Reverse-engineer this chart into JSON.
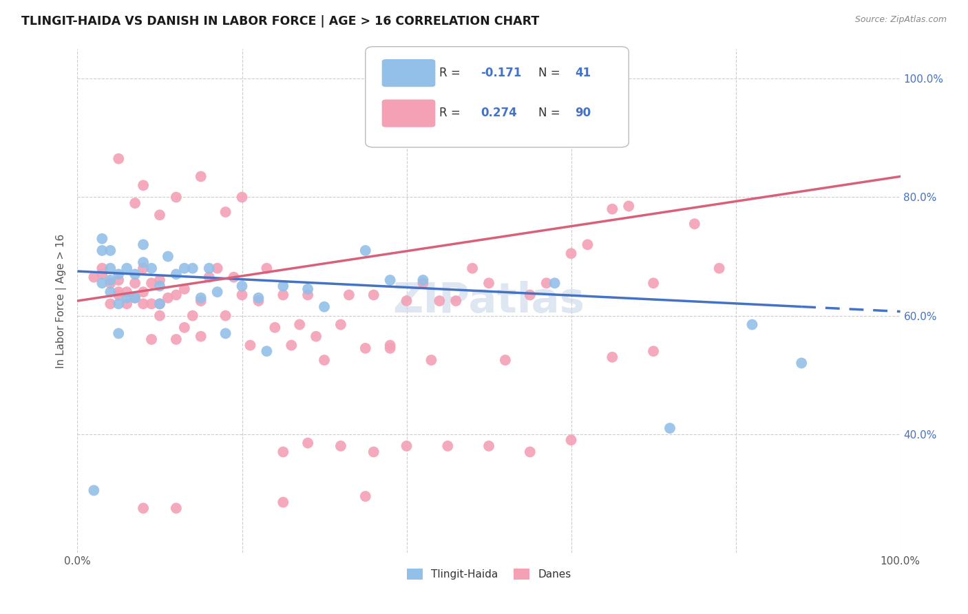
{
  "title": "TLINGIT-HAIDA VS DANISH IN LABOR FORCE | AGE > 16 CORRELATION CHART",
  "source": "Source: ZipAtlas.com",
  "ylabel": "In Labor Force | Age > 16",
  "xlim": [
    0,
    1
  ],
  "ylim": [
    0.2,
    1.05
  ],
  "x_tick_positions": [
    0.0,
    0.2,
    0.4,
    0.6,
    0.8,
    1.0
  ],
  "x_tick_labels": [
    "0.0%",
    "",
    "",
    "",
    "",
    "100.0%"
  ],
  "y_tick_positions": [
    0.4,
    0.6,
    0.8,
    1.0
  ],
  "y_tick_labels": [
    "40.0%",
    "60.0%",
    "80.0%",
    "100.0%"
  ],
  "blue_color": "#92C0E8",
  "pink_color": "#F4A0B5",
  "blue_line_color": "#4472C4",
  "pink_line_color": "#D9607A",
  "watermark": "ZIPatlas",
  "tlingit_haida_x": [
    0.02,
    0.03,
    0.03,
    0.04,
    0.04,
    0.04,
    0.04,
    0.05,
    0.05,
    0.05,
    0.06,
    0.06,
    0.07,
    0.07,
    0.08,
    0.08,
    0.09,
    0.1,
    0.1,
    0.11,
    0.12,
    0.13,
    0.14,
    0.15,
    0.16,
    0.17,
    0.18,
    0.2,
    0.22,
    0.23,
    0.25,
    0.28,
    0.3,
    0.35,
    0.38,
    0.42,
    0.58,
    0.72,
    0.82,
    0.88,
    0.03
  ],
  "tlingit_haida_y": [
    0.305,
    0.655,
    0.73,
    0.64,
    0.66,
    0.68,
    0.71,
    0.57,
    0.62,
    0.67,
    0.63,
    0.68,
    0.63,
    0.67,
    0.69,
    0.72,
    0.68,
    0.62,
    0.65,
    0.7,
    0.67,
    0.68,
    0.68,
    0.63,
    0.68,
    0.64,
    0.57,
    0.65,
    0.63,
    0.54,
    0.65,
    0.645,
    0.615,
    0.71,
    0.66,
    0.66,
    0.655,
    0.41,
    0.585,
    0.52,
    0.71
  ],
  "danes_x": [
    0.02,
    0.03,
    0.03,
    0.04,
    0.04,
    0.05,
    0.05,
    0.05,
    0.06,
    0.06,
    0.07,
    0.07,
    0.08,
    0.08,
    0.08,
    0.09,
    0.09,
    0.09,
    0.1,
    0.1,
    0.1,
    0.11,
    0.12,
    0.12,
    0.13,
    0.13,
    0.14,
    0.15,
    0.15,
    0.16,
    0.17,
    0.18,
    0.19,
    0.2,
    0.21,
    0.22,
    0.23,
    0.24,
    0.25,
    0.26,
    0.27,
    0.28,
    0.29,
    0.3,
    0.32,
    0.33,
    0.35,
    0.36,
    0.38,
    0.4,
    0.42,
    0.44,
    0.46,
    0.48,
    0.5,
    0.52,
    0.55,
    0.57,
    0.6,
    0.62,
    0.65,
    0.67,
    0.7,
    0.75,
    0.78,
    0.05,
    0.07,
    0.08,
    0.1,
    0.12,
    0.15,
    0.18,
    0.2,
    0.25,
    0.28,
    0.32,
    0.36,
    0.4,
    0.45,
    0.5,
    0.55,
    0.6,
    0.65,
    0.7,
    0.38,
    0.43,
    0.08,
    0.12,
    0.25,
    0.35
  ],
  "danes_y": [
    0.665,
    0.67,
    0.68,
    0.62,
    0.655,
    0.635,
    0.64,
    0.66,
    0.62,
    0.64,
    0.63,
    0.655,
    0.62,
    0.64,
    0.68,
    0.56,
    0.62,
    0.655,
    0.6,
    0.62,
    0.66,
    0.63,
    0.56,
    0.635,
    0.58,
    0.645,
    0.6,
    0.565,
    0.625,
    0.665,
    0.68,
    0.6,
    0.665,
    0.635,
    0.55,
    0.625,
    0.68,
    0.58,
    0.635,
    0.55,
    0.585,
    0.635,
    0.565,
    0.525,
    0.585,
    0.635,
    0.545,
    0.635,
    0.55,
    0.625,
    0.655,
    0.625,
    0.625,
    0.68,
    0.655,
    0.525,
    0.635,
    0.655,
    0.705,
    0.72,
    0.78,
    0.785,
    0.655,
    0.755,
    0.68,
    0.865,
    0.79,
    0.82,
    0.77,
    0.8,
    0.835,
    0.775,
    0.8,
    0.37,
    0.385,
    0.38,
    0.37,
    0.38,
    0.38,
    0.38,
    0.37,
    0.39,
    0.53,
    0.54,
    0.545,
    0.525,
    0.275,
    0.275,
    0.285,
    0.295
  ]
}
